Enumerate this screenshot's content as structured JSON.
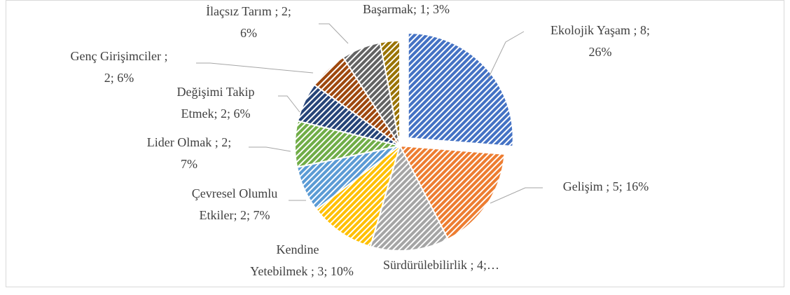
{
  "chart_data": {
    "type": "pie",
    "categories": [
      "Ekolojik Yaşam",
      "Gelişim",
      "Sürdürülebilirlik",
      "Kendine Yetebilmek",
      "Çevresel Olumlu Etkiler",
      "Lider Olmak",
      "Değişimi Takip Etmek",
      "Genç Girişimciler",
      "İlaçsız Tarım",
      "Başarmak"
    ],
    "values": [
      26,
      16,
      12,
      10,
      7,
      7,
      6,
      6,
      6,
      3
    ],
    "value_labels": [
      [
        "Ekolojik Yaşam ; 8;",
        "26%"
      ],
      [
        "Gelişim ; 5; 16%"
      ],
      [
        "Sürdürülebilirlik ; 4;…"
      ],
      [
        "Kendine",
        "Yetebilmek ; 3; 10%"
      ],
      [
        "Çevresel Olumlu",
        "Etkiler; 2; 7%"
      ],
      [
        "Lider Olmak ; 2;",
        "7%"
      ],
      [
        "Değişimi Takip",
        "Etmek; 2; 6%"
      ],
      [
        "Genç Girişimciler ;",
        "2; 6%"
      ],
      [
        "İlaçsız Tarım ; 2;",
        "6%"
      ],
      [
        "Başarmak; 1; 3%"
      ]
    ],
    "colors": [
      "#4472c4",
      "#ed7d31",
      "#a5a5a5",
      "#ffc000",
      "#5b9bd5",
      "#70ad47",
      "#264478",
      "#9e480e",
      "#636363",
      "#997300"
    ],
    "pattern": "diagonal-hatch"
  }
}
